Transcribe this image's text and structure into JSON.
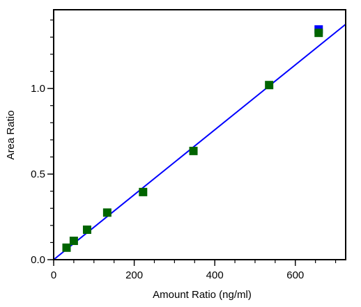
{
  "chart_data": {
    "type": "scatter",
    "title": "",
    "xlabel": "Amount Ratio (ng/ml)",
    "ylabel": "Area Ratio",
    "xlim": [
      0,
      725
    ],
    "ylim": [
      0,
      1.46
    ],
    "x_ticks": [
      0,
      200,
      400,
      600
    ],
    "x_tick_labels": [
      "0",
      "200",
      "400",
      "600"
    ],
    "x_minor_step": 50,
    "y_ticks": [
      0.0,
      0.5,
      1.0
    ],
    "y_tick_labels": [
      "0.0",
      "0.5",
      "1.0"
    ],
    "y_minor_step": 0.1,
    "grid": false,
    "series": [
      {
        "color": "#006400",
        "marker": "square",
        "x": [
          32,
          50,
          83,
          133,
          222,
          347,
          535,
          658
        ],
        "y": [
          0.07,
          0.11,
          0.175,
          0.275,
          0.395,
          0.635,
          1.02,
          1.325
        ]
      },
      {
        "color": "#0000ff",
        "marker": "square",
        "x": [
          658
        ],
        "y": [
          1.345
        ]
      }
    ],
    "fit_line": {
      "color": "#0000ff",
      "x": [
        0,
        725
      ],
      "y": [
        0.0,
        1.375
      ]
    }
  }
}
